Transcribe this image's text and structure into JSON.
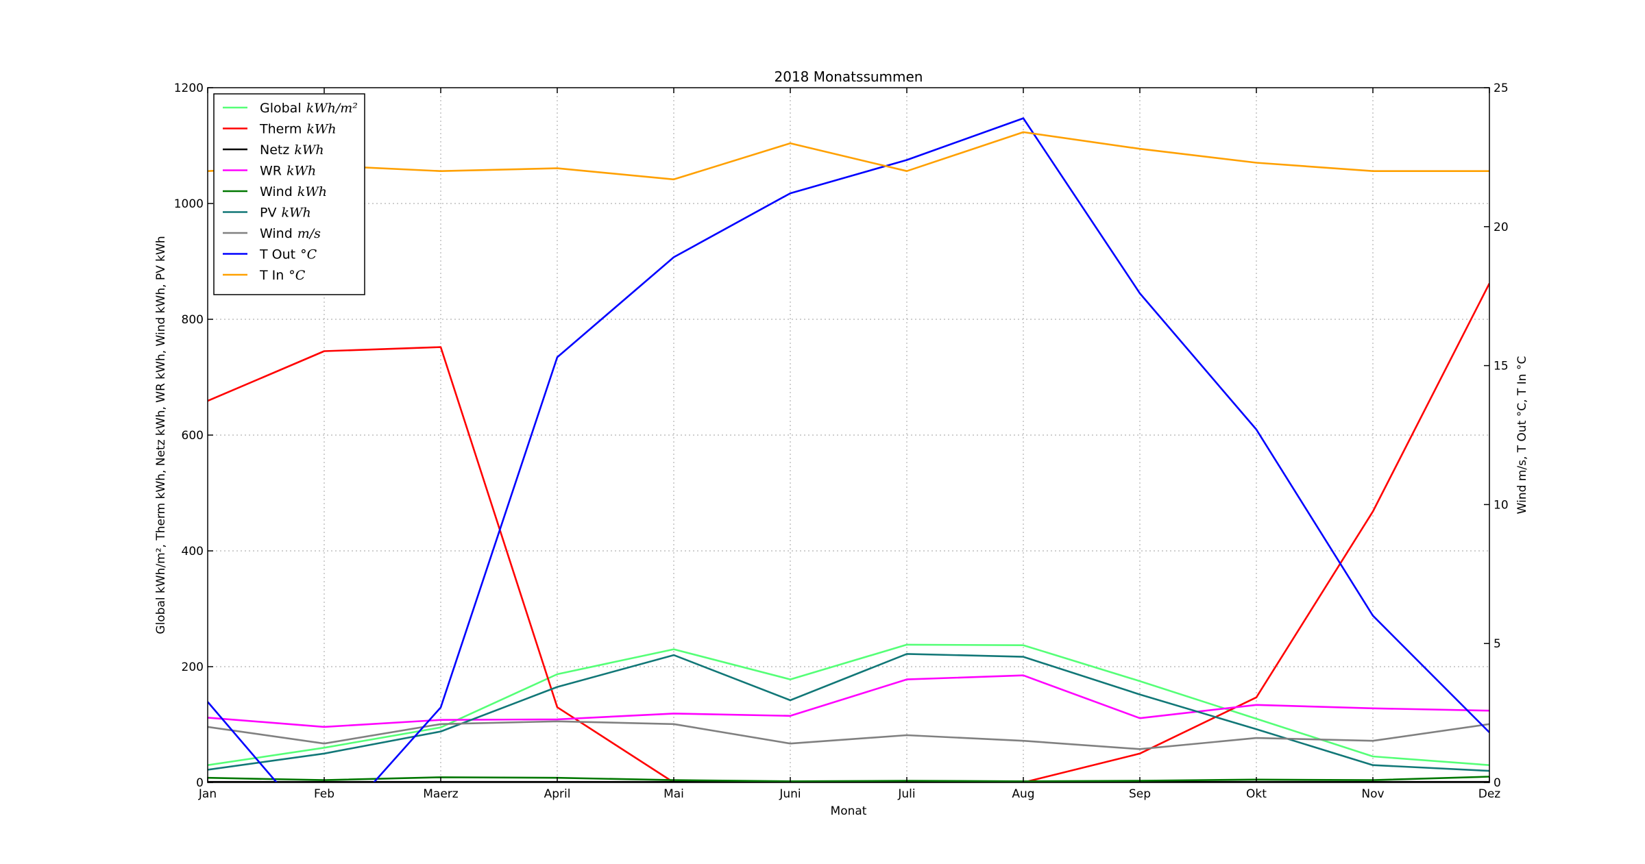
{
  "chart_data": {
    "type": "line",
    "title": "2018 Monatssummen",
    "xlabel": "Monat",
    "ylabel_left": "Global kWh/m², Therm kWh, Netz kWh, WR kWh, Wind kWh, PV kWh",
    "ylabel_right": "Wind m/s, T Out °C, T In °C",
    "categories": [
      "Jan",
      "Feb",
      "Maerz",
      "April",
      "Mai",
      "Juni",
      "Juli",
      "Aug",
      "Sep",
      "Okt",
      "Nov",
      "Dez"
    ],
    "ylim_left": [
      0,
      1200
    ],
    "ylim_right": [
      0,
      25
    ],
    "yticks_left": [
      "0",
      "200",
      "400",
      "600",
      "800",
      "1000",
      "1200"
    ],
    "yticks_right": [
      "0",
      "5",
      "10",
      "15",
      "20",
      "25"
    ],
    "grid": true,
    "legend_position": "top-left",
    "series": [
      {
        "name": "Global",
        "unit": "kWh/m²",
        "axis": "left",
        "color": "#55ff77",
        "values": [
          30,
          60,
          95,
          187,
          230,
          178,
          238,
          237,
          175,
          110,
          45,
          30
        ]
      },
      {
        "name": "Therm",
        "unit": "kWh",
        "axis": "left",
        "color": "#ff0000",
        "values": [
          659,
          745,
          752,
          130,
          0,
          -20,
          -20,
          0,
          50,
          147,
          468,
          862
        ]
      },
      {
        "name": "Netz",
        "unit": "kWh",
        "axis": "left",
        "color": "#000000",
        "values": [
          1,
          1,
          1,
          1,
          1,
          1,
          1,
          1,
          1,
          1,
          1,
          1
        ]
      },
      {
        "name": "WR",
        "unit": "kWh",
        "axis": "left",
        "color": "#ff00ff",
        "values": [
          112,
          96,
          108,
          109,
          119,
          115,
          178,
          185,
          111,
          134,
          128,
          124
        ]
      },
      {
        "name": "Wind",
        "unit": "kWh",
        "axis": "left",
        "color": "#007700",
        "values": [
          8,
          4,
          9,
          8,
          4,
          2,
          3,
          2,
          3,
          5,
          4,
          10
        ]
      },
      {
        "name": "PV",
        "unit": "kWh",
        "axis": "left",
        "color": "#117777",
        "values": [
          22,
          50,
          88,
          165,
          220,
          142,
          222,
          217,
          152,
          92,
          30,
          20
        ]
      },
      {
        "name": "Wind",
        "unit": "m/s",
        "axis": "right",
        "color": "#808080",
        "values": [
          2.0,
          1.4,
          2.1,
          2.2,
          2.1,
          1.4,
          1.7,
          1.5,
          1.2,
          1.6,
          1.5,
          2.1
        ]
      },
      {
        "name": "T Out",
        "unit": "°C",
        "axis": "right",
        "color": "#0000ff",
        "values": [
          2.9,
          -2.0,
          2.7,
          15.3,
          18.9,
          21.2,
          22.4,
          23.9,
          17.6,
          12.7,
          6.0,
          1.8
        ]
      },
      {
        "name": "T In",
        "unit": "°C",
        "axis": "right",
        "color": "#ffa000",
        "values": [
          22.0,
          22.2,
          22.0,
          22.1,
          21.7,
          23.0,
          22.0,
          23.4,
          22.8,
          22.3,
          22.0,
          22.0
        ]
      }
    ]
  }
}
